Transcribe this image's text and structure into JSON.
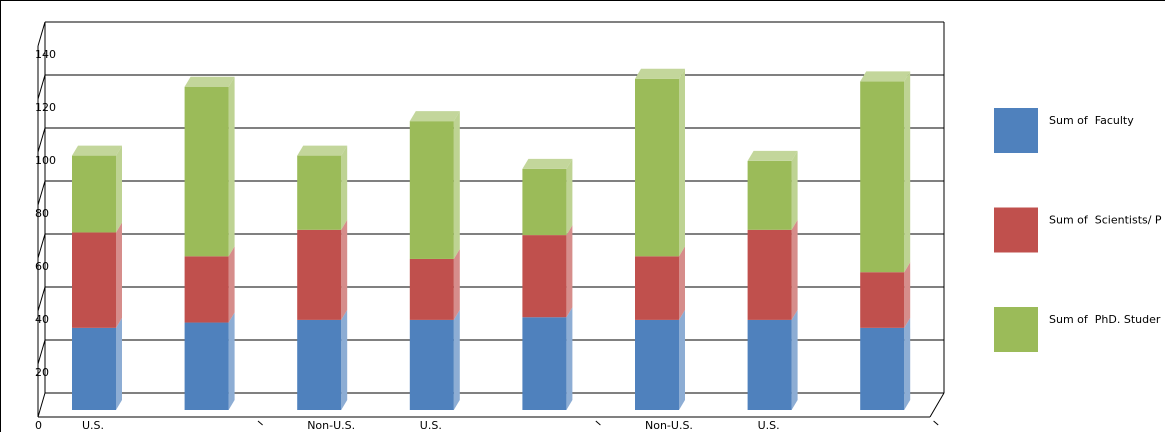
{
  "chart_data": {
    "type": "stacked-bar-3d",
    "categories": [
      "U.S.",
      null,
      "Non-U.S.",
      "U.S.",
      null,
      "Non-U.S.",
      "U.S.",
      null
    ],
    "series": [
      {
        "name": "Sum of  Faculty",
        "color": "#4f81bd",
        "values": [
          31,
          33,
          34,
          34,
          35,
          34,
          34,
          31
        ]
      },
      {
        "name": "Sum of  Scientists/ P",
        "color": "#c0504d",
        "values": [
          36,
          25,
          34,
          23,
          31,
          24,
          34,
          21
        ]
      },
      {
        "name": "Sum of  PhD. Studer",
        "color": "#9bbb59",
        "values": [
          29,
          64,
          28,
          52,
          25,
          67,
          26,
          72
        ]
      }
    ],
    "ylim": [
      0,
      140
    ],
    "yticks": [
      0,
      20,
      40,
      60,
      80,
      100,
      120,
      140
    ],
    "grid": true,
    "legend": "right"
  }
}
